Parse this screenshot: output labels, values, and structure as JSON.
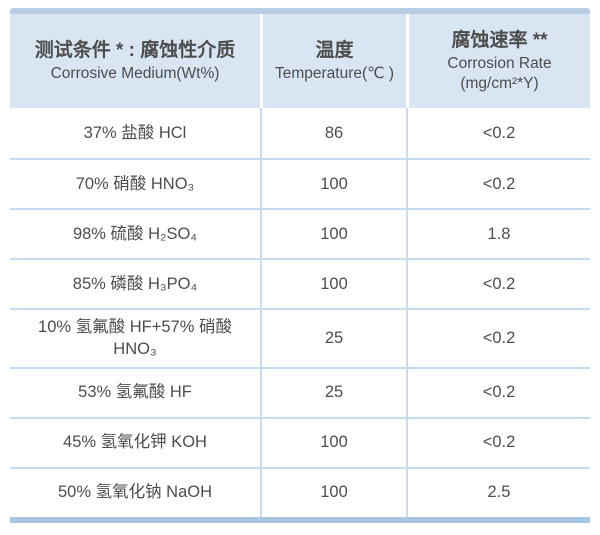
{
  "table": {
    "headers": [
      {
        "zh": "测试条件 * : 腐蚀性介质",
        "en": "Corrosive Medium(Wt%)"
      },
      {
        "zh": "温度",
        "en": "Temperature(℃ )"
      },
      {
        "zh": "腐蚀速率 **",
        "en": "Corrosion Rate",
        "en2": "(mg/cm²*Y)"
      }
    ],
    "rows": [
      {
        "medium": "37% 盐酸 HCl",
        "temperature": "86",
        "rate": "<0.2"
      },
      {
        "medium": "70% 硝酸 HNO₃",
        "temperature": "100",
        "rate": "<0.2"
      },
      {
        "medium": "98% 硫酸 H₂SO₄",
        "temperature": "100",
        "rate": "1.8"
      },
      {
        "medium": "85% 磷酸 H₃PO₄",
        "temperature": "100",
        "rate": "<0.2"
      },
      {
        "medium": "10% 氢氟酸 HF+57% 硝酸 HNO₃",
        "temperature": "25",
        "rate": "<0.2"
      },
      {
        "medium": "53% 氢氟酸 HF",
        "temperature": "25",
        "rate": "<0.2"
      },
      {
        "medium": "45% 氢氧化钾 KOH",
        "temperature": "100",
        "rate": "<0.2"
      },
      {
        "medium": "50% 氢氧化钠 NaOH",
        "temperature": "100",
        "rate": "2.5"
      }
    ],
    "colors": {
      "header_bg": "#d9e5f2",
      "top_strip": "#b6cde4",
      "bottom_strip": "#a9c7e2",
      "divider": "#c6dbef",
      "text": "#4d4d4d",
      "page_bg": "#ffffff"
    }
  },
  "chart_data": {
    "type": "table",
    "title": "",
    "columns": [
      "测试条件 * : 腐蚀性介质 Corrosive Medium(Wt%)",
      "温度 Temperature(℃ )",
      "腐蚀速率 ** Corrosion Rate (mg/cm²*Y)"
    ],
    "rows": [
      [
        "37% 盐酸 HCl",
        "86",
        "<0.2"
      ],
      [
        "70% 硝酸 HNO₃",
        "100",
        "<0.2"
      ],
      [
        "98% 硫酸 H₂SO₄",
        "100",
        "1.8"
      ],
      [
        "85% 磷酸 H₃PO₄",
        "100",
        "<0.2"
      ],
      [
        "10% 氢氟酸 HF+57% 硝酸 HNO₃",
        "25",
        "<0.2"
      ],
      [
        "53% 氢氟酸 HF",
        "25",
        "<0.2"
      ],
      [
        "45% 氢氧化钾 KOH",
        "100",
        "<0.2"
      ],
      [
        "50% 氢氧化钠 NaOH",
        "100",
        "2.5"
      ]
    ]
  }
}
